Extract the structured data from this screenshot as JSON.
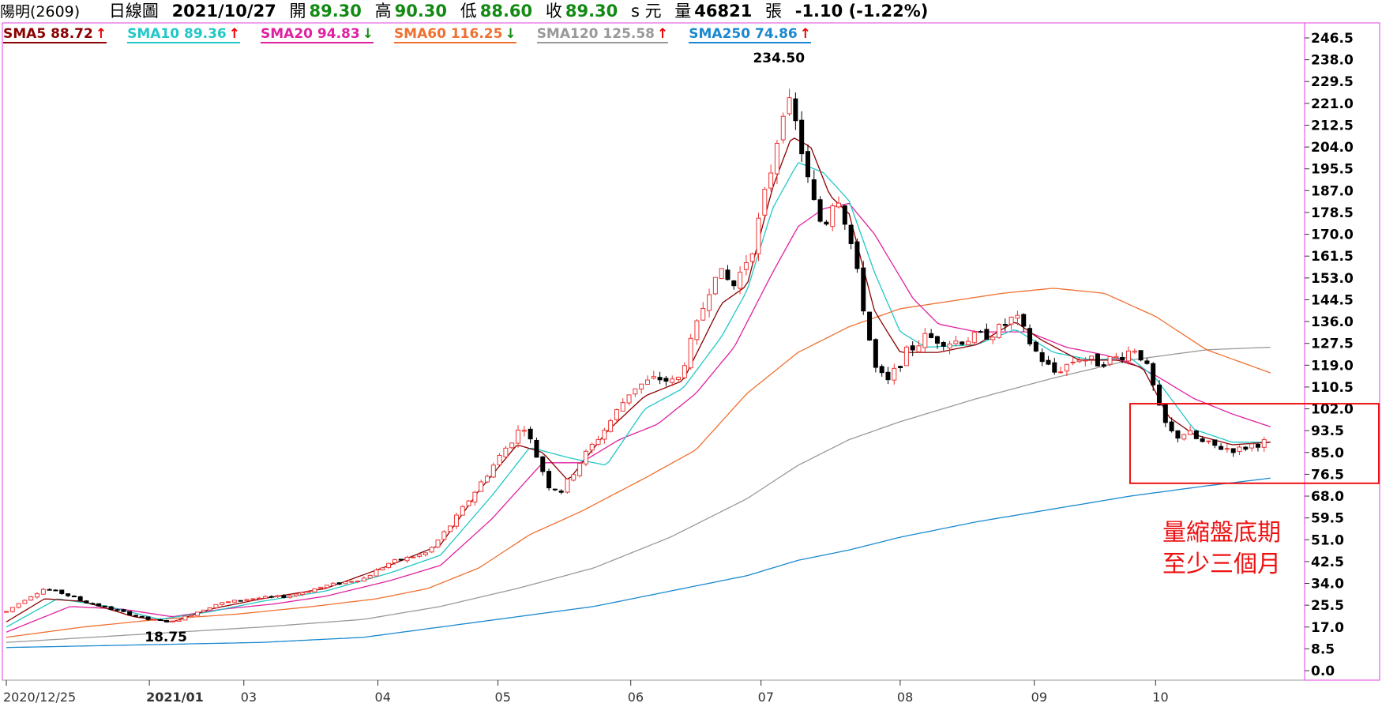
{
  "header": {
    "stock": "陽明(2609)",
    "chart_type": "日線圖",
    "date": "2021/10/27",
    "open_label": "開",
    "open": "89.30",
    "high_label": "高",
    "high": "90.30",
    "low_label": "低",
    "low": "88.60",
    "close_label": "收",
    "close": "89.30",
    "unit": "s 元",
    "volume_label": "量",
    "volume": "46821",
    "volume_unit": "張",
    "change": "-1.10 (-1.22%)"
  },
  "ma_legend": [
    {
      "label": "SMA5",
      "value": "88.72",
      "dir": "up",
      "color": "#8b0000"
    },
    {
      "label": "SMA10",
      "value": "89.36",
      "dir": "up",
      "color": "#22c7c7"
    },
    {
      "label": "SMA20",
      "value": "94.83",
      "dir": "down",
      "color": "#e020a0"
    },
    {
      "label": "SMA60",
      "value": "116.25",
      "dir": "down",
      "color": "#f07030"
    },
    {
      "label": "SMA120",
      "value": "125.58",
      "dir": "up",
      "color": "#999999"
    },
    {
      "label": "SMA250",
      "value": "74.86",
      "dir": "up",
      "color": "#1a88d0"
    }
  ],
  "arrows": {
    "up": "↑",
    "down": "↓"
  },
  "colors": {
    "up_candle": "#ee3333",
    "down_candle": "#000000",
    "frame": "#e040e0",
    "annotation": "#ee1111",
    "up_arrow": "#ee0000",
    "down_arrow": "#138a13"
  },
  "annotation": {
    "line1": "量縮盤底期",
    "line2": "至少三個月"
  },
  "chart_data": {
    "type": "candlestick",
    "ylim": [
      0,
      250
    ],
    "yticks": [
      "246.5",
      "238.0",
      "229.5",
      "221.0",
      "212.5",
      "204.0",
      "195.5",
      "187.0",
      "178.5",
      "170.0",
      "161.5",
      "153.0",
      "144.5",
      "136.0",
      "127.5",
      "119.0",
      "110.5",
      "102.0",
      "93.5",
      "85.0",
      "76.5",
      "68.0",
      "59.5",
      "51.0",
      "42.5",
      "34.0",
      "25.5",
      "17.0",
      "8.5",
      "0.0"
    ],
    "xticks": [
      {
        "label": "2020/12/25",
        "t": 0.0,
        "bold": false
      },
      {
        "label": "2021/01",
        "t": 0.112,
        "bold": true
      },
      {
        "label": "03",
        "t": 0.186,
        "bold": false
      },
      {
        "label": "04",
        "t": 0.291,
        "bold": false
      },
      {
        "label": "05",
        "t": 0.385,
        "bold": false
      },
      {
        "label": "06",
        "t": 0.489,
        "bold": false
      },
      {
        "label": "07",
        "t": 0.591,
        "bold": false
      },
      {
        "label": "08",
        "t": 0.7,
        "bold": false
      },
      {
        "label": "09",
        "t": 0.805,
        "bold": false
      },
      {
        "label": "10",
        "t": 0.9,
        "bold": false
      }
    ],
    "price_points": [
      [
        0.0,
        23
      ],
      [
        0.015,
        28
      ],
      [
        0.03,
        32
      ],
      [
        0.045,
        30
      ],
      [
        0.06,
        27
      ],
      [
        0.075,
        25
      ],
      [
        0.09,
        23
      ],
      [
        0.11,
        20
      ],
      [
        0.13,
        19
      ],
      [
        0.145,
        22
      ],
      [
        0.165,
        26
      ],
      [
        0.19,
        28
      ],
      [
        0.22,
        29
      ],
      [
        0.25,
        33
      ],
      [
        0.28,
        36
      ],
      [
        0.3,
        42
      ],
      [
        0.33,
        46
      ],
      [
        0.35,
        58
      ],
      [
        0.37,
        72
      ],
      [
        0.39,
        86
      ],
      [
        0.405,
        96
      ],
      [
        0.415,
        84
      ],
      [
        0.425,
        72
      ],
      [
        0.435,
        70
      ],
      [
        0.45,
        82
      ],
      [
        0.47,
        95
      ],
      [
        0.49,
        110
      ],
      [
        0.51,
        114
      ],
      [
        0.525,
        112
      ],
      [
        0.54,
        133
      ],
      [
        0.555,
        156
      ],
      [
        0.57,
        150
      ],
      [
        0.585,
        166
      ],
      [
        0.6,
        198
      ],
      [
        0.61,
        224
      ],
      [
        0.62,
        210
      ],
      [
        0.63,
        185
      ],
      [
        0.64,
        172
      ],
      [
        0.65,
        188
      ],
      [
        0.66,
        170
      ],
      [
        0.67,
        145
      ],
      [
        0.68,
        118
      ],
      [
        0.69,
        112
      ],
      [
        0.705,
        124
      ],
      [
        0.72,
        130
      ],
      [
        0.74,
        128
      ],
      [
        0.76,
        130
      ],
      [
        0.775,
        132
      ],
      [
        0.79,
        138
      ],
      [
        0.805,
        125
      ],
      [
        0.82,
        116
      ],
      [
        0.84,
        122
      ],
      [
        0.855,
        120
      ],
      [
        0.87,
        122
      ],
      [
        0.885,
        126
      ],
      [
        0.895,
        116
      ],
      [
        0.905,
        98
      ],
      [
        0.915,
        91
      ],
      [
        0.925,
        93
      ],
      [
        0.935,
        89
      ],
      [
        0.95,
        87
      ],
      [
        0.965,
        86
      ],
      [
        0.975,
        88
      ],
      [
        0.985,
        89
      ]
    ],
    "sma5": [
      [
        0.0,
        19
      ],
      [
        0.03,
        28
      ],
      [
        0.06,
        27
      ],
      [
        0.1,
        21
      ],
      [
        0.13,
        19
      ],
      [
        0.16,
        24
      ],
      [
        0.2,
        28
      ],
      [
        0.25,
        32
      ],
      [
        0.3,
        41
      ],
      [
        0.34,
        49
      ],
      [
        0.37,
        70
      ],
      [
        0.4,
        88
      ],
      [
        0.42,
        85
      ],
      [
        0.44,
        74
      ],
      [
        0.47,
        93
      ],
      [
        0.5,
        107
      ],
      [
        0.53,
        113
      ],
      [
        0.56,
        143
      ],
      [
        0.58,
        150
      ],
      [
        0.6,
        188
      ],
      [
        0.615,
        208
      ],
      [
        0.63,
        204
      ],
      [
        0.645,
        185
      ],
      [
        0.66,
        178
      ],
      [
        0.68,
        140
      ],
      [
        0.7,
        124
      ],
      [
        0.73,
        124
      ],
      [
        0.76,
        127
      ],
      [
        0.79,
        136
      ],
      [
        0.81,
        129
      ],
      [
        0.84,
        121
      ],
      [
        0.87,
        121
      ],
      [
        0.89,
        118
      ],
      [
        0.91,
        99
      ],
      [
        0.93,
        92
      ],
      [
        0.96,
        88
      ],
      [
        0.99,
        89
      ]
    ],
    "sma10": [
      [
        0.0,
        17
      ],
      [
        0.04,
        28
      ],
      [
        0.08,
        25
      ],
      [
        0.12,
        20
      ],
      [
        0.16,
        23
      ],
      [
        0.2,
        27
      ],
      [
        0.25,
        31
      ],
      [
        0.3,
        38
      ],
      [
        0.34,
        45
      ],
      [
        0.38,
        68
      ],
      [
        0.41,
        87
      ],
      [
        0.44,
        83
      ],
      [
        0.47,
        80
      ],
      [
        0.5,
        102
      ],
      [
        0.53,
        110
      ],
      [
        0.56,
        130
      ],
      [
        0.58,
        148
      ],
      [
        0.6,
        180
      ],
      [
        0.62,
        198
      ],
      [
        0.64,
        194
      ],
      [
        0.66,
        183
      ],
      [
        0.68,
        155
      ],
      [
        0.7,
        132
      ],
      [
        0.72,
        126
      ],
      [
        0.76,
        127
      ],
      [
        0.79,
        133
      ],
      [
        0.82,
        124
      ],
      [
        0.85,
        121
      ],
      [
        0.88,
        122
      ],
      [
        0.9,
        114
      ],
      [
        0.93,
        94
      ],
      [
        0.96,
        89
      ],
      [
        0.99,
        89
      ]
    ],
    "sma20": [
      [
        0.0,
        15
      ],
      [
        0.05,
        25
      ],
      [
        0.09,
        24
      ],
      [
        0.13,
        21
      ],
      [
        0.17,
        24
      ],
      [
        0.21,
        26
      ],
      [
        0.25,
        29
      ],
      [
        0.3,
        35
      ],
      [
        0.34,
        41
      ],
      [
        0.38,
        59
      ],
      [
        0.42,
        81
      ],
      [
        0.45,
        81
      ],
      [
        0.48,
        90
      ],
      [
        0.51,
        96
      ],
      [
        0.54,
        108
      ],
      [
        0.57,
        126
      ],
      [
        0.6,
        155
      ],
      [
        0.62,
        173
      ],
      [
        0.64,
        180
      ],
      [
        0.66,
        182
      ],
      [
        0.68,
        170
      ],
      [
        0.71,
        145
      ],
      [
        0.73,
        135
      ],
      [
        0.76,
        132
      ],
      [
        0.8,
        132
      ],
      [
        0.83,
        126
      ],
      [
        0.86,
        123
      ],
      [
        0.88,
        120
      ],
      [
        0.9,
        115
      ],
      [
        0.93,
        106
      ],
      [
        0.96,
        100
      ],
      [
        0.99,
        95
      ]
    ],
    "sma60": [
      [
        0.0,
        13
      ],
      [
        0.06,
        17
      ],
      [
        0.12,
        20
      ],
      [
        0.18,
        22
      ],
      [
        0.24,
        25
      ],
      [
        0.29,
        28
      ],
      [
        0.33,
        32
      ],
      [
        0.37,
        40
      ],
      [
        0.41,
        53
      ],
      [
        0.45,
        62
      ],
      [
        0.5,
        75
      ],
      [
        0.54,
        86
      ],
      [
        0.58,
        108
      ],
      [
        0.62,
        124
      ],
      [
        0.66,
        134
      ],
      [
        0.7,
        141
      ],
      [
        0.74,
        144
      ],
      [
        0.78,
        147
      ],
      [
        0.82,
        149
      ],
      [
        0.86,
        147
      ],
      [
        0.9,
        138
      ],
      [
        0.94,
        125
      ],
      [
        0.99,
        116
      ]
    ],
    "sma120": [
      [
        0.0,
        11
      ],
      [
        0.1,
        14
      ],
      [
        0.2,
        17
      ],
      [
        0.28,
        20
      ],
      [
        0.34,
        25
      ],
      [
        0.4,
        32
      ],
      [
        0.46,
        40
      ],
      [
        0.52,
        52
      ],
      [
        0.58,
        67
      ],
      [
        0.62,
        80
      ],
      [
        0.66,
        90
      ],
      [
        0.7,
        97
      ],
      [
        0.76,
        106
      ],
      [
        0.82,
        114
      ],
      [
        0.88,
        121
      ],
      [
        0.94,
        125
      ],
      [
        0.99,
        126
      ]
    ],
    "sma250": [
      [
        0.0,
        9
      ],
      [
        0.1,
        10
      ],
      [
        0.2,
        11
      ],
      [
        0.28,
        13
      ],
      [
        0.34,
        17
      ],
      [
        0.4,
        21
      ],
      [
        0.46,
        25
      ],
      [
        0.52,
        31
      ],
      [
        0.58,
        37
      ],
      [
        0.62,
        43
      ],
      [
        0.66,
        47
      ],
      [
        0.7,
        52
      ],
      [
        0.76,
        58
      ],
      [
        0.82,
        63
      ],
      [
        0.88,
        68
      ],
      [
        0.94,
        72
      ],
      [
        0.99,
        75
      ]
    ],
    "extremes": {
      "high": "234.50",
      "high_value": 234.5,
      "low": "18.75",
      "low_value": 18.75
    },
    "highlight_box": {
      "t_start": 0.88,
      "t_end": 1.0,
      "y_low": 73,
      "y_high": 104
    }
  }
}
